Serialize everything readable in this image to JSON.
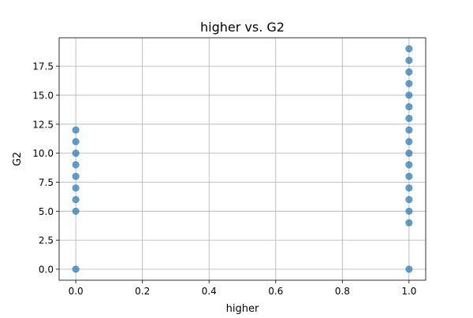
{
  "chart_data": {
    "type": "scatter",
    "title": "higher vs. G2",
    "xlabel": "higher",
    "ylabel": "G2",
    "xlim": [
      -0.05,
      1.05
    ],
    "ylim": [
      -0.95,
      19.95
    ],
    "xticks": [
      0.0,
      0.2,
      0.4,
      0.6,
      0.8,
      1.0
    ],
    "xtick_labels": [
      "0.0",
      "0.2",
      "0.4",
      "0.6",
      "0.8",
      "1.0"
    ],
    "yticks": [
      0.0,
      2.5,
      5.0,
      7.5,
      10.0,
      12.5,
      15.0,
      17.5
    ],
    "ytick_labels": [
      "0.0",
      "2.5",
      "5.0",
      "7.5",
      "10.0",
      "12.5",
      "15.0",
      "17.5"
    ],
    "grid": true,
    "point_color": "#1f77b4",
    "points": [
      {
        "x": 0,
        "y": 0
      },
      {
        "x": 0,
        "y": 5
      },
      {
        "x": 0,
        "y": 6
      },
      {
        "x": 0,
        "y": 7
      },
      {
        "x": 0,
        "y": 8
      },
      {
        "x": 0,
        "y": 9
      },
      {
        "x": 0,
        "y": 10
      },
      {
        "x": 0,
        "y": 11
      },
      {
        "x": 0,
        "y": 12
      },
      {
        "x": 1,
        "y": 0
      },
      {
        "x": 1,
        "y": 4
      },
      {
        "x": 1,
        "y": 5
      },
      {
        "x": 1,
        "y": 6
      },
      {
        "x": 1,
        "y": 7
      },
      {
        "x": 1,
        "y": 8
      },
      {
        "x": 1,
        "y": 9
      },
      {
        "x": 1,
        "y": 10
      },
      {
        "x": 1,
        "y": 11
      },
      {
        "x": 1,
        "y": 12
      },
      {
        "x": 1,
        "y": 13
      },
      {
        "x": 1,
        "y": 14
      },
      {
        "x": 1,
        "y": 15
      },
      {
        "x": 1,
        "y": 16
      },
      {
        "x": 1,
        "y": 17
      },
      {
        "x": 1,
        "y": 18
      },
      {
        "x": 1,
        "y": 19
      }
    ]
  }
}
